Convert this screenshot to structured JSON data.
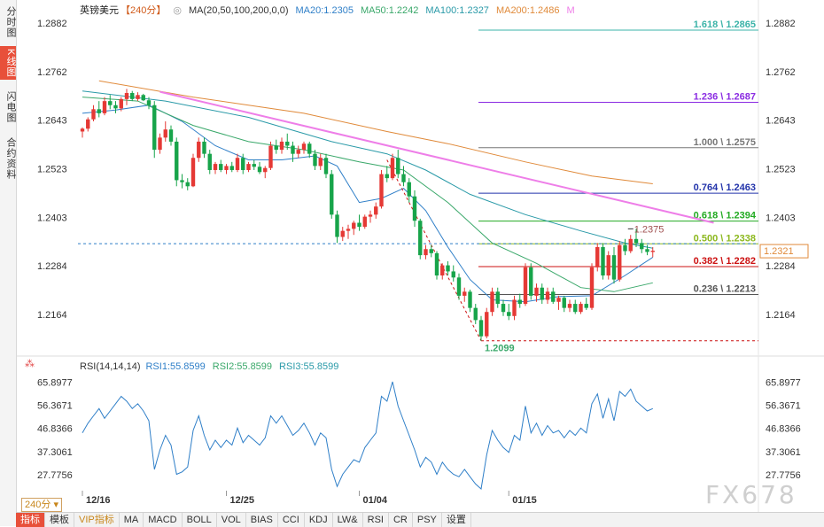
{
  "side_tabs": [
    "分时图",
    "K线图",
    "闪电图",
    "合约资料"
  ],
  "top_legend": {
    "symbol": "英镑美元",
    "period": "【240分】",
    "ma_spec": "MA(20,50,100,200,0,0)",
    "ma20": "MA20:1.2305",
    "ma50": "MA50:1.2242",
    "ma100": "MA100:1.2327",
    "ma200": "MA200:1.2486",
    "m": "M"
  },
  "rsi_legend": {
    "spec": "RSI(14,14,14)",
    "rsi1": "RSI1:55.8599",
    "rsi2": "RSI2:55.8599",
    "rsi3": "RSI3:55.8599"
  },
  "price_axis_ticks": [
    "1.2882",
    "1.2762",
    "1.2643",
    "1.2523",
    "1.2403",
    "1.2284",
    "1.2164"
  ],
  "rsi_axis_ticks": [
    "65.8977",
    "56.3671",
    "46.8366",
    "37.3061",
    "27.7756"
  ],
  "date_labels": [
    "12/16",
    "12/25",
    "01/04",
    "01/15"
  ],
  "current_price": "1.2321",
  "fib_levels": [
    {
      "label": "1.618 \\ 1.2865",
      "color": "#3bb3a8"
    },
    {
      "label": "1.236 \\ 1.2687",
      "color": "#8a2be2"
    },
    {
      "label": "1.000 \\ 1.2575",
      "color": "#777777"
    },
    {
      "label": "0.764 \\ 1.2463",
      "color": "#2233aa"
    },
    {
      "label": "0.618 \\ 1.2394",
      "color": "#22aa22"
    },
    {
      "label": "0.500 \\ 1.2338",
      "color": "#8cb81e"
    },
    {
      "label": "0.382 \\ 1.2282",
      "color": "#cc1111"
    },
    {
      "label": "0.236 \\ 1.2213",
      "color": "#555555"
    }
  ],
  "annotations": {
    "high": "1.2375",
    "low": "1.2099"
  },
  "chart_data": {
    "type": "candlestick",
    "title": "英镑美元【240分】",
    "ylim": [
      1.207,
      1.29
    ],
    "rsi_ylim": [
      22,
      70
    ],
    "candles_ohlc": [
      [
        1.2615,
        1.2625,
        1.26,
        1.2622
      ],
      [
        1.2622,
        1.265,
        1.2615,
        1.2645
      ],
      [
        1.2645,
        1.268,
        1.264,
        1.267
      ],
      [
        1.267,
        1.269,
        1.265,
        1.266
      ],
      [
        1.266,
        1.27,
        1.2655,
        1.269
      ],
      [
        1.269,
        1.2705,
        1.267,
        1.268
      ],
      [
        1.268,
        1.269,
        1.266,
        1.2672
      ],
      [
        1.2672,
        1.27,
        1.2665,
        1.2695
      ],
      [
        1.2695,
        1.272,
        1.268,
        1.271
      ],
      [
        1.271,
        1.2715,
        1.269,
        1.2695
      ],
      [
        1.2695,
        1.2712,
        1.269,
        1.2705
      ],
      [
        1.2705,
        1.2708,
        1.269,
        1.2692
      ],
      [
        1.2692,
        1.27,
        1.267,
        1.268
      ],
      [
        1.268,
        1.269,
        1.255,
        1.257
      ],
      [
        1.257,
        1.261,
        1.256,
        1.26
      ],
      [
        1.26,
        1.264,
        1.259,
        1.262
      ],
      [
        1.262,
        1.263,
        1.258,
        1.259
      ],
      [
        1.259,
        1.26,
        1.248,
        1.2495
      ],
      [
        1.2495,
        1.251,
        1.2475,
        1.249
      ],
      [
        1.249,
        1.25,
        1.247,
        1.248
      ],
      [
        1.248,
        1.256,
        1.2478,
        1.255
      ],
      [
        1.255,
        1.26,
        1.254,
        1.259
      ],
      [
        1.259,
        1.26,
        1.255,
        1.256
      ],
      [
        1.256,
        1.257,
        1.251,
        1.252
      ],
      [
        1.252,
        1.254,
        1.251,
        1.2535
      ],
      [
        1.2535,
        1.2545,
        1.2515,
        1.252
      ],
      [
        1.252,
        1.2535,
        1.251,
        1.253
      ],
      [
        1.253,
        1.254,
        1.2515,
        1.252
      ],
      [
        1.252,
        1.256,
        1.2515,
        1.255
      ],
      [
        1.255,
        1.256,
        1.251,
        1.252
      ],
      [
        1.252,
        1.254,
        1.2515,
        1.2535
      ],
      [
        1.2535,
        1.2545,
        1.252,
        1.2528
      ],
      [
        1.2528,
        1.254,
        1.251,
        1.2515
      ],
      [
        1.2515,
        1.253,
        1.25,
        1.2525
      ],
      [
        1.2525,
        1.259,
        1.252,
        1.258
      ],
      [
        1.258,
        1.2595,
        1.256,
        1.257
      ],
      [
        1.257,
        1.26,
        1.256,
        1.259
      ],
      [
        1.259,
        1.261,
        1.257,
        1.258
      ],
      [
        1.258,
        1.259,
        1.254,
        1.256
      ],
      [
        1.256,
        1.258,
        1.255,
        1.257
      ],
      [
        1.257,
        1.259,
        1.256,
        1.2585
      ],
      [
        1.2585,
        1.259,
        1.255,
        1.256
      ],
      [
        1.256,
        1.257,
        1.252,
        1.253
      ],
      [
        1.253,
        1.256,
        1.252,
        1.255
      ],
      [
        1.255,
        1.256,
        1.25,
        1.251
      ],
      [
        1.251,
        1.252,
        1.24,
        1.241
      ],
      [
        1.241,
        1.242,
        1.234,
        1.2355
      ],
      [
        1.2355,
        1.238,
        1.2345,
        1.237
      ],
      [
        1.237,
        1.2385,
        1.235,
        1.2375
      ],
      [
        1.2375,
        1.2395,
        1.236,
        1.239
      ],
      [
        1.239,
        1.241,
        1.237,
        1.238
      ],
      [
        1.238,
        1.241,
        1.2375,
        1.2405
      ],
      [
        1.2405,
        1.242,
        1.239,
        1.241
      ],
      [
        1.241,
        1.244,
        1.24,
        1.243
      ],
      [
        1.243,
        1.252,
        1.2425,
        1.251
      ],
      [
        1.251,
        1.253,
        1.249,
        1.25
      ],
      [
        1.25,
        1.256,
        1.2495,
        1.255
      ],
      [
        1.255,
        1.257,
        1.25,
        1.251
      ],
      [
        1.251,
        1.253,
        1.248,
        1.249
      ],
      [
        1.249,
        1.25,
        1.244,
        1.2455
      ],
      [
        1.2455,
        1.247,
        1.238,
        1.2395
      ],
      [
        1.2395,
        1.24,
        1.23,
        1.231
      ],
      [
        1.231,
        1.2335,
        1.23,
        1.2325
      ],
      [
        1.2325,
        1.2335,
        1.2305,
        1.2315
      ],
      [
        1.2315,
        1.232,
        1.225,
        1.226
      ],
      [
        1.226,
        1.229,
        1.225,
        1.2285
      ],
      [
        1.2285,
        1.2295,
        1.226,
        1.227
      ],
      [
        1.227,
        1.2285,
        1.2245,
        1.2255
      ],
      [
        1.2255,
        1.2265,
        1.22,
        1.221
      ],
      [
        1.221,
        1.223,
        1.2195,
        1.222
      ],
      [
        1.222,
        1.2225,
        1.217,
        1.218
      ],
      [
        1.218,
        1.219,
        1.214,
        1.215
      ],
      [
        1.215,
        1.216,
        1.2099,
        1.211
      ],
      [
        1.211,
        1.218,
        1.2105,
        1.217
      ],
      [
        1.217,
        1.223,
        1.216,
        1.222
      ],
      [
        1.222,
        1.223,
        1.218,
        1.219
      ],
      [
        1.219,
        1.22,
        1.216,
        1.217
      ],
      [
        1.217,
        1.219,
        1.215,
        1.216
      ],
      [
        1.216,
        1.221,
        1.215,
        1.22
      ],
      [
        1.22,
        1.2215,
        1.218,
        1.219
      ],
      [
        1.219,
        1.229,
        1.2185,
        1.228
      ],
      [
        1.228,
        1.229,
        1.22,
        1.221
      ],
      [
        1.221,
        1.224,
        1.2195,
        1.223
      ],
      [
        1.223,
        1.224,
        1.219,
        1.22
      ],
      [
        1.22,
        1.223,
        1.219,
        1.222
      ],
      [
        1.222,
        1.223,
        1.219,
        1.2195
      ],
      [
        1.2195,
        1.221,
        1.2175,
        1.2205
      ],
      [
        1.2205,
        1.221,
        1.217,
        1.218
      ],
      [
        1.218,
        1.22,
        1.217,
        1.219
      ],
      [
        1.219,
        1.22,
        1.2165,
        1.217
      ],
      [
        1.217,
        1.2195,
        1.2165,
        1.219
      ],
      [
        1.219,
        1.2205,
        1.2175,
        1.218
      ],
      [
        1.218,
        1.229,
        1.2175,
        1.228
      ],
      [
        1.228,
        1.234,
        1.227,
        1.233
      ],
      [
        1.233,
        1.234,
        1.225,
        1.226
      ],
      [
        1.226,
        1.232,
        1.225,
        1.231
      ],
      [
        1.231,
        1.233,
        1.224,
        1.225
      ],
      [
        1.225,
        1.2345,
        1.2245,
        1.2335
      ],
      [
        1.2335,
        1.235,
        1.231,
        1.232
      ],
      [
        1.232,
        1.236,
        1.2315,
        1.235
      ],
      [
        1.235,
        1.2375,
        1.233,
        1.234
      ],
      [
        1.234,
        1.235,
        1.2315,
        1.2325
      ],
      [
        1.2325,
        1.2335,
        1.231,
        1.2318
      ],
      [
        1.2318,
        1.233,
        1.2305,
        1.2321
      ]
    ],
    "ma_lines": [
      {
        "name": "MA20",
        "color": "#2f7fc8",
        "points": [
          [
            0,
            1.266
          ],
          [
            6,
            1.2668
          ],
          [
            12,
            1.268
          ],
          [
            18,
            1.264
          ],
          [
            24,
            1.258
          ],
          [
            30,
            1.2545
          ],
          [
            36,
            1.2545
          ],
          [
            42,
            1.2555
          ],
          [
            46,
            1.253
          ],
          [
            50,
            1.244
          ],
          [
            54,
            1.245
          ],
          [
            58,
            1.2475
          ],
          [
            62,
            1.242
          ],
          [
            66,
            1.233
          ],
          [
            70,
            1.225
          ],
          [
            74,
            1.22
          ],
          [
            80,
            1.2195
          ],
          [
            86,
            1.2208
          ],
          [
            92,
            1.221
          ],
          [
            98,
            1.226
          ],
          [
            103,
            1.2305
          ]
        ]
      },
      {
        "name": "MA50",
        "color": "#3aa86a",
        "points": [
          [
            0,
            1.27
          ],
          [
            10,
            1.269
          ],
          [
            20,
            1.263
          ],
          [
            30,
            1.259
          ],
          [
            40,
            1.257
          ],
          [
            50,
            1.254
          ],
          [
            58,
            1.252
          ],
          [
            66,
            1.244
          ],
          [
            74,
            1.234
          ],
          [
            82,
            1.229
          ],
          [
            90,
            1.223
          ],
          [
            96,
            1.222
          ],
          [
            103,
            1.2242
          ]
        ]
      },
      {
        "name": "MA100",
        "color": "#2a9aa8",
        "points": [
          [
            0,
            1.2715
          ],
          [
            15,
            1.269
          ],
          [
            30,
            1.265
          ],
          [
            45,
            1.259
          ],
          [
            55,
            1.256
          ],
          [
            62,
            1.252
          ],
          [
            70,
            1.246
          ],
          [
            80,
            1.241
          ],
          [
            90,
            1.237
          ],
          [
            98,
            1.234
          ],
          [
            103,
            1.2327
          ]
        ]
      },
      {
        "name": "MA200",
        "color": "#e08a3a",
        "points": [
          [
            3,
            1.274
          ],
          [
            20,
            1.27
          ],
          [
            40,
            1.266
          ],
          [
            55,
            1.2615
          ],
          [
            66,
            1.2585
          ],
          [
            80,
            1.254
          ],
          [
            92,
            1.2505
          ],
          [
            103,
            1.2486
          ]
        ]
      }
    ],
    "trendline": {
      "color": "#ee7ee8",
      "points": [
        [
          14,
          1.2713
        ],
        [
          114,
          1.239
        ]
      ]
    },
    "zigzag": [
      [
        55,
        1.2545
      ],
      [
        72,
        1.2099
      ]
    ],
    "rsi": [
      45,
      49,
      52,
      55,
      51,
      54,
      57,
      60,
      58,
      55,
      57,
      54,
      50,
      30,
      38,
      44,
      40,
      28,
      29,
      31,
      46,
      52,
      44,
      38,
      42,
      39,
      42,
      40,
      47,
      41,
      44,
      42,
      40,
      43,
      52,
      49,
      52,
      48,
      44,
      46,
      49,
      45,
      40,
      45,
      43,
      30,
      23,
      28,
      31,
      34,
      33,
      39,
      42,
      45,
      60,
      58,
      66,
      56,
      50,
      44,
      38,
      31,
      35,
      33,
      28,
      33,
      30,
      28,
      27,
      30,
      27,
      24,
      22,
      36,
      46,
      42,
      39,
      37,
      44,
      42,
      56,
      45,
      49,
      44,
      48,
      45,
      46,
      43,
      46,
      44,
      47,
      45,
      57,
      61,
      51,
      59,
      50,
      62,
      60,
      63,
      58,
      56,
      54,
      55
    ]
  }
}
